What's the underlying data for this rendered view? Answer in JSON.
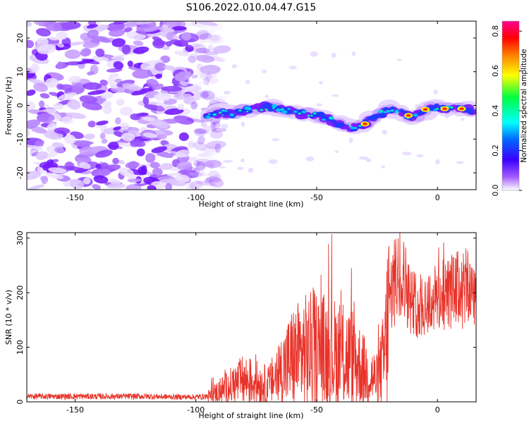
{
  "figure_title": "S106.2022.010.04.47.G15",
  "chart_data": [
    {
      "type": "heatmap",
      "xlabel": "Height of straight line (km)",
      "ylabel": "Frequency (Hz)",
      "xlim": [
        -170,
        16
      ],
      "ylim": [
        -25,
        25
      ],
      "x_ticks": [
        -150,
        -100,
        -50,
        0
      ],
      "y_ticks": [
        -20,
        -10,
        0,
        10,
        20
      ],
      "colorbar": {
        "label": "Normalized spectral amplitude",
        "range": [
          0,
          0.85
        ],
        "ticks": [
          "0.0",
          "0.2",
          "0.4",
          "0.6",
          "0.8"
        ],
        "colors": [
          "#ffffff",
          "#7a00ff",
          "#0000ff",
          "#00ffff",
          "#00ff00",
          "#ffff00",
          "#ff7f00",
          "#ff0000",
          "#ff00a0"
        ]
      },
      "noise_region_x": [
        -170,
        -95
      ],
      "ridge": {
        "x": [
          -95,
          -90,
          -85,
          -80,
          -75,
          -70,
          -65,
          -60,
          -55,
          -50,
          -45,
          -40,
          -35,
          -30,
          -25,
          -20,
          -15,
          -10,
          -5,
          0,
          5,
          10,
          14
        ],
        "y": [
          -3,
          -2,
          -2.5,
          -1.5,
          -1,
          -0.5,
          -1,
          -2,
          -2.5,
          -3,
          -4,
          -6,
          -6.5,
          -5.5,
          -3,
          -1,
          -2,
          -3.5,
          -1.5,
          -0.5,
          -1,
          -1,
          -1.5
        ]
      }
    },
    {
      "type": "line",
      "xlabel": "Height of straight line (km)",
      "ylabel": "SNR (10 * v/v)",
      "xlim": [
        -170,
        16
      ],
      "ylim": [
        0,
        310
      ],
      "x_ticks": [
        -150,
        -100,
        -50,
        0
      ],
      "y_ticks": [
        0,
        100,
        200,
        300
      ],
      "color": "#e8332a",
      "series": [
        {
          "x": [
            -170,
            -160,
            -150,
            -140,
            -130,
            -120,
            -110,
            -100,
            -95,
            -90,
            -85,
            -80,
            -75,
            -70,
            -65,
            -60,
            -55,
            -50,
            -45,
            -40,
            -35,
            -30,
            -25,
            -22,
            -20,
            -18,
            -15,
            -12,
            -10,
            -5,
            0,
            5,
            10,
            15
          ],
          "values": [
            10,
            10,
            10,
            10,
            10,
            10,
            9,
            9,
            10,
            20,
            30,
            40,
            35,
            30,
            55,
            80,
            90,
            95,
            90,
            85,
            80,
            55,
            40,
            80,
            170,
            220,
            240,
            200,
            180,
            180,
            190,
            200,
            210,
            205
          ]
        }
      ]
    }
  ]
}
